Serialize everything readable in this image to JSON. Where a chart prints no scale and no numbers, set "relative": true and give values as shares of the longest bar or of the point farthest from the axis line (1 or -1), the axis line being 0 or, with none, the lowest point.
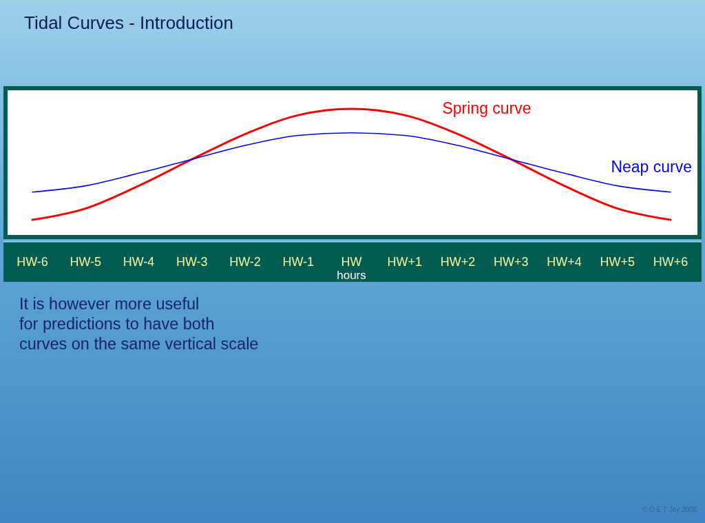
{
  "chart_data": {
    "type": "line",
    "title": "Tidal Curves - Introduction",
    "xlabel": "hours",
    "relative": true,
    "categories": [
      "HW-6",
      "HW-5",
      "HW-4",
      "HW-3",
      "HW-2",
      "HW-1",
      "HW",
      "HW+1",
      "HW+2",
      "HW+3",
      "HW+4",
      "HW+5",
      "HW+6"
    ],
    "series": [
      {
        "name": "Spring curve",
        "color": "#ff0000",
        "values": [
          0.12,
          0.21,
          0.39,
          0.6,
          0.8,
          0.95,
          1,
          0.95,
          0.8,
          0.6,
          0.39,
          0.21,
          0.12
        ]
      },
      {
        "name": "Neap curve",
        "color": "#0000ff",
        "values": [
          0.34,
          0.39,
          0.49,
          0.6,
          0.71,
          0.79,
          0.81,
          0.79,
          0.71,
          0.6,
          0.49,
          0.39,
          0.34
        ]
      }
    ],
    "annotations": [
      "It is however more useful\nfor predictions to have both\ncurves on the same vertical scale",
      "© O E T Joy 2008"
    ]
  }
}
